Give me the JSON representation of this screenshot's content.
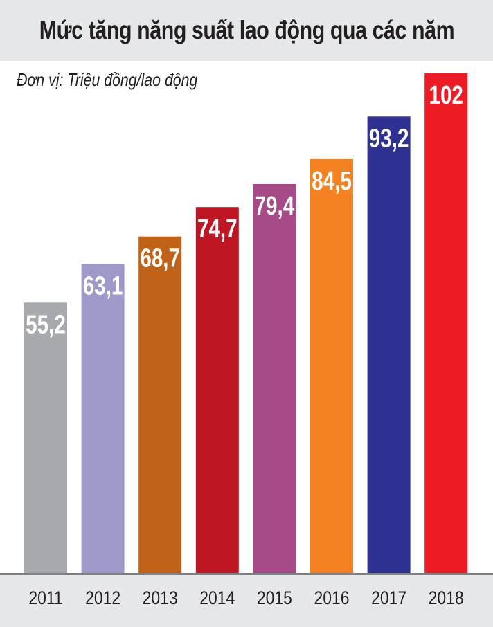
{
  "chart_data": {
    "type": "bar",
    "title": "Mức tăng năng suất lao động qua các năm",
    "unit_label": "Đơn vị: Triệu đồng/lao động",
    "categories": [
      "2011",
      "2012",
      "2013",
      "2014",
      "2015",
      "2016",
      "2017",
      "2018"
    ],
    "values": [
      55.2,
      63.1,
      68.7,
      74.7,
      79.4,
      84.5,
      93.2,
      102
    ],
    "value_labels": [
      "55,2",
      "63,1",
      "68,7",
      "74,7",
      "79,4",
      "84,5",
      "93,2",
      "102"
    ],
    "colors": [
      "#a7a9ac",
      "#9e99c9",
      "#c06217",
      "#be1622",
      "#a64b87",
      "#f58220",
      "#2e3191",
      "#ed1c24"
    ],
    "ylim": [
      0,
      102
    ],
    "grid": false,
    "legend": "none"
  }
}
